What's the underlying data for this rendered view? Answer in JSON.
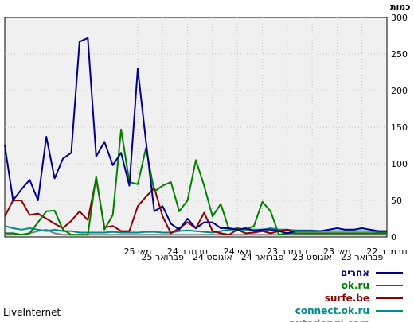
{
  "chart_data": {
    "type": "line",
    "ylabel": "כמות",
    "ylim": [
      0,
      300
    ],
    "yticks": [
      0,
      50,
      100,
      150,
      200,
      250,
      300
    ],
    "xlim": [
      0,
      46
    ],
    "x_ticks": [
      {
        "label": "נובמבר 22",
        "x": 46
      },
      {
        "label": "פברואר 23",
        "x": 43
      },
      {
        "label": "מאי 23",
        "x": 40
      },
      {
        "label": "אוגוסט 23",
        "x": 37
      },
      {
        "label": "נובמבר 23",
        "x": 34
      },
      {
        "label": "פברואר 24",
        "x": 31
      },
      {
        "label": "מאי 24",
        "x": 28
      },
      {
        "label": "אוגוסט 24",
        "x": 25
      },
      {
        "label": "נובמבר 24",
        "x": 22
      },
      {
        "label": "פברואר 25",
        "x": 19
      },
      {
        "label": "מאי 25",
        "x": 16
      }
    ],
    "grid": true,
    "legend_position": "bottom-right",
    "series": [
      {
        "name": "אחרים",
        "color": "#00008b",
        "x": [
          0,
          1,
          2,
          3,
          4,
          5,
          6,
          7,
          8,
          9,
          10,
          11,
          12,
          13,
          14,
          15,
          16,
          17,
          18,
          19,
          20,
          21,
          22,
          23,
          24,
          25,
          26,
          27,
          28,
          29,
          30,
          31,
          32,
          33,
          34,
          35,
          36,
          37,
          38,
          39,
          40,
          41,
          42,
          43,
          44,
          45,
          46
        ],
        "values": [
          125,
          50,
          65,
          78,
          50,
          137,
          80,
          107,
          115,
          267,
          272,
          110,
          130,
          98,
          115,
          70,
          230,
          130,
          35,
          42,
          18,
          10,
          25,
          12,
          20,
          20,
          12,
          12,
          10,
          12,
          8,
          10,
          10,
          8,
          5,
          8,
          8,
          8,
          8,
          10,
          12,
          10,
          10,
          12,
          10,
          8,
          8
        ]
      },
      {
        "name": "ok.ru",
        "color": "#008000",
        "x": [
          0,
          1,
          2,
          3,
          4,
          5,
          6,
          7,
          8,
          9,
          10,
          11,
          12,
          13,
          14,
          15,
          16,
          17,
          18,
          19,
          20,
          21,
          22,
          23,
          24,
          25,
          26,
          27,
          28,
          29,
          30,
          31,
          32,
          33,
          34,
          35,
          36,
          37,
          38,
          39,
          40,
          41,
          42,
          43,
          44,
          45,
          46
        ],
        "values": [
          5,
          5,
          3,
          5,
          20,
          35,
          36,
          10,
          3,
          3,
          3,
          83,
          10,
          30,
          147,
          75,
          72,
          122,
          62,
          70,
          75,
          35,
          50,
          105,
          70,
          28,
          45,
          10,
          12,
          10,
          15,
          48,
          35,
          3,
          5,
          5,
          5,
          5,
          5,
          5,
          5,
          5,
          5,
          5,
          5,
          5,
          5
        ]
      },
      {
        "name": "surfe.be",
        "color": "#8b0000",
        "x": [
          0,
          1,
          2,
          3,
          4,
          5,
          6,
          7,
          8,
          9,
          10,
          11,
          12,
          13,
          14,
          15,
          16,
          17,
          18,
          19,
          20,
          21,
          22,
          23,
          24,
          25,
          26,
          27,
          28,
          29,
          30,
          31,
          32,
          33,
          34,
          35,
          36,
          37,
          38,
          39,
          40,
          41,
          42,
          43,
          44,
          45,
          46
        ],
        "values": [
          28,
          50,
          50,
          30,
          32,
          25,
          18,
          12,
          22,
          35,
          23,
          80,
          13,
          15,
          8,
          8,
          42,
          55,
          67,
          28,
          5,
          12,
          20,
          12,
          33,
          8,
          5,
          3,
          10,
          5,
          6,
          8,
          5,
          8,
          10,
          5,
          5,
          5,
          5,
          5,
          5,
          5,
          5,
          5,
          5,
          5,
          5
        ]
      },
      {
        "name": "connect.ok.ru",
        "color": "#008b8b",
        "x": [
          0,
          1,
          2,
          3,
          4,
          5,
          6,
          7,
          8,
          9,
          10,
          11,
          12,
          13,
          14,
          15,
          16,
          17,
          18,
          19,
          20,
          21,
          22,
          23,
          24,
          25,
          26,
          27,
          28,
          29,
          30,
          31,
          32,
          33,
          34,
          35,
          36,
          37,
          38,
          39,
          40,
          41,
          42,
          43,
          44,
          45,
          46
        ],
        "values": [
          15,
          12,
          10,
          12,
          10,
          8,
          10,
          8,
          8,
          6,
          6,
          6,
          6,
          7,
          6,
          6,
          6,
          7,
          7,
          6,
          6,
          8,
          9,
          8,
          7,
          6,
          8,
          10,
          10,
          10,
          10,
          10,
          12,
          10,
          10,
          9,
          9,
          9,
          8,
          8,
          8,
          8,
          8,
          8,
          8,
          7,
          7
        ]
      },
      {
        "name": "autodengi.com",
        "color": "#808080",
        "x": [
          0,
          1,
          2,
          3,
          4,
          5,
          6,
          7,
          8,
          9,
          10,
          11,
          12,
          13,
          14,
          15,
          16,
          17,
          18,
          19,
          20,
          21,
          22,
          23,
          24,
          25,
          26,
          27,
          28,
          29,
          30,
          31,
          32,
          33,
          34,
          35,
          36,
          37,
          38,
          39,
          40,
          41,
          42,
          43,
          44,
          45,
          46
        ],
        "values": [
          3,
          3,
          3,
          5,
          8,
          10,
          5,
          3,
          3,
          3,
          3,
          3,
          3,
          3,
          3,
          3,
          3,
          3,
          3,
          3,
          3,
          3,
          3,
          3,
          3,
          3,
          3,
          3,
          3,
          3,
          3,
          3,
          3,
          3,
          3,
          3,
          3,
          3,
          3,
          3,
          3,
          3,
          3,
          3,
          3,
          3,
          3
        ]
      }
    ]
  },
  "footer": {
    "brand": "LiveInternet"
  }
}
